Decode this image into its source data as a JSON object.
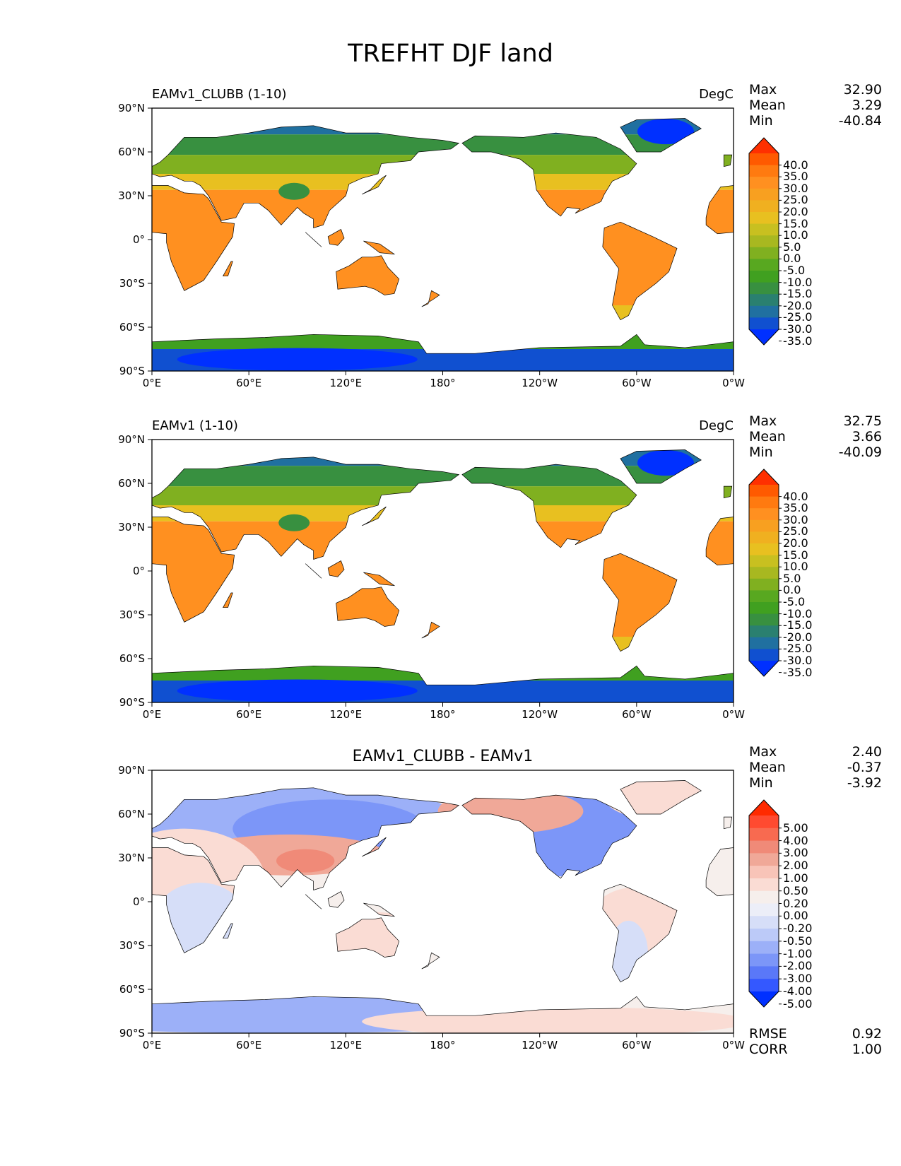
{
  "figure": {
    "title": "TREFHT DJF land"
  },
  "axes": {
    "lat_ticks": [
      "90°N",
      "60°N",
      "30°N",
      "0°",
      "30°S",
      "60°S",
      "90°S"
    ],
    "lon_ticks": [
      "0°E",
      "60°E",
      "120°E",
      "180°",
      "120°W",
      "60°W",
      "0°W"
    ]
  },
  "panels": [
    {
      "left_title": "EAMv1_CLUBB (1-10)",
      "center_title": "",
      "units": "DegC",
      "stats": {
        "max_label": "Max",
        "max": "32.90",
        "mean_label": "Mean",
        "mean": "3.29",
        "min_label": "Min",
        "min": "-40.84"
      },
      "colorbar": {
        "labels": [
          "40.0",
          "35.0",
          "30.0",
          "25.0",
          "20.0",
          "15.0",
          "10.0",
          "5.0",
          "0.0",
          "-5.0",
          "-10.0",
          "-15.0",
          "-20.0",
          "-25.0",
          "-30.0",
          "-35.0"
        ],
        "colors": [
          "#ff3000",
          "#ff5a00",
          "#ff7a10",
          "#ff9020",
          "#f8a020",
          "#f0b020",
          "#e8c020",
          "#c8c020",
          "#a8b820",
          "#80b020",
          "#58a820",
          "#40a020",
          "#389040",
          "#2a8070",
          "#2070a0",
          "#1050d0",
          "#0030ff"
        ]
      }
    },
    {
      "left_title": "EAMv1 (1-10)",
      "center_title": "",
      "units": "DegC",
      "stats": {
        "max_label": "Max",
        "max": "32.75",
        "mean_label": "Mean",
        "mean": "3.66",
        "min_label": "Min",
        "min": "-40.09"
      },
      "colorbar": {
        "labels": [
          "40.0",
          "35.0",
          "30.0",
          "25.0",
          "20.0",
          "15.0",
          "10.0",
          "5.0",
          "0.0",
          "-5.0",
          "-10.0",
          "-15.0",
          "-20.0",
          "-25.0",
          "-30.0",
          "-35.0"
        ],
        "colors": [
          "#ff3000",
          "#ff5a00",
          "#ff7a10",
          "#ff9020",
          "#f8a020",
          "#f0b020",
          "#e8c020",
          "#c8c020",
          "#a8b820",
          "#80b020",
          "#58a820",
          "#40a020",
          "#389040",
          "#2a8070",
          "#2070a0",
          "#1050d0",
          "#0030ff"
        ]
      }
    },
    {
      "left_title": "",
      "center_title": "EAMv1_CLUBB - EAMv1",
      "units": "",
      "stats": {
        "max_label": "Max",
        "max": "2.40",
        "mean_label": "Mean",
        "mean": "-0.37",
        "min_label": "Min",
        "min": "-3.92"
      },
      "colorbar": {
        "labels": [
          "5.00",
          "4.00",
          "3.00",
          "2.00",
          "1.00",
          "0.50",
          "0.20",
          "0.00",
          "-0.20",
          "-0.50",
          "-1.00",
          "-2.00",
          "-3.00",
          "-4.00",
          "-5.00"
        ],
        "colors": [
          "#ff2a00",
          "#ff4a30",
          "#f86a50",
          "#f08a78",
          "#f0a898",
          "#f8c4b8",
          "#fadcd4",
          "#f6efec",
          "#eceef8",
          "#d6def8",
          "#bccaf8",
          "#9cb0f8",
          "#7c96f8",
          "#5a78f8",
          "#3458ff",
          "#0030ff"
        ]
      },
      "metrics": {
        "rmse_label": "RMSE",
        "rmse": "0.92",
        "corr_label": "CORR",
        "corr": "1.00"
      }
    }
  ],
  "map_colors": {
    "panel0": {
      "polar_north": "#2070a0",
      "boreal": "#389040",
      "mid": "#80b020",
      "warm": "#e8c020",
      "tropical": "#ff9020",
      "antarctic": "#1050d0",
      "antarctic_edge": "#40a020",
      "greenland": "#0030ff"
    },
    "panel2": {
      "cool": "#9cb0f8",
      "cooler": "#7c96f8",
      "warm": "#f0a898",
      "neutral": "#f6efec",
      "light_cool": "#d6def8",
      "light_warm": "#fadcd4"
    }
  }
}
